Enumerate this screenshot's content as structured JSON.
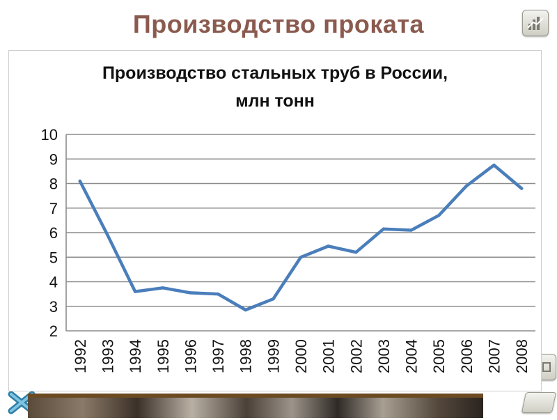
{
  "slide": {
    "title": "Производство проката"
  },
  "controls": {
    "home_icon": "chart-home-icon",
    "back_icon": "close-x-icon",
    "next_icon": "next-arrow-icon",
    "side_icon": "menu-icon"
  },
  "chart_data": {
    "type": "line",
    "title_line1": "Производство стальных труб в России,",
    "title_line2": "млн тонн",
    "xlabel": "",
    "ylabel": "",
    "ylim": [
      2,
      10
    ],
    "yticks": [
      2,
      3,
      4,
      5,
      6,
      7,
      8,
      9,
      10
    ],
    "grid": true,
    "legend": "none",
    "line_color": "#4a7ebb",
    "categories": [
      "1992",
      "1993",
      "1994",
      "1995",
      "1996",
      "1997",
      "1998",
      "1999",
      "2000",
      "2001",
      "2002",
      "2003",
      "2004",
      "2005",
      "2006",
      "2007",
      "2008"
    ],
    "series": [
      {
        "values": [
          8.1,
          5.9,
          3.6,
          3.75,
          3.55,
          3.5,
          2.85,
          3.3,
          5.0,
          5.45,
          5.2,
          6.15,
          6.1,
          6.7,
          7.9,
          8.75,
          7.8
        ]
      }
    ]
  }
}
